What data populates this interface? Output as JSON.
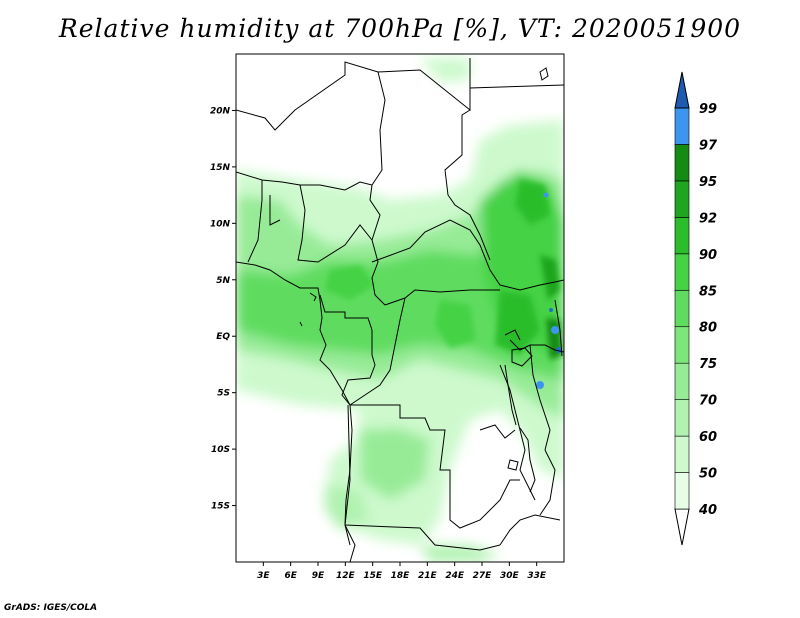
{
  "title": "Relative humidity at 700hPa [%], VT: 2020051900",
  "credit": "GrADS: IGES/COLA",
  "map": {
    "lon_range": [
      0,
      36
    ],
    "lat_range": [
      -20,
      25
    ],
    "lat_ticks": [
      {
        "value": 20,
        "label": "20N"
      },
      {
        "value": 15,
        "label": "15N"
      },
      {
        "value": 10,
        "label": "10N"
      },
      {
        "value": 5,
        "label": "5N"
      },
      {
        "value": 0,
        "label": "EQ"
      },
      {
        "value": -5,
        "label": "5S"
      },
      {
        "value": -10,
        "label": "10S"
      },
      {
        "value": -15,
        "label": "15S"
      }
    ],
    "lon_ticks": [
      {
        "value": 3,
        "label": "3E"
      },
      {
        "value": 6,
        "label": "6E"
      },
      {
        "value": 9,
        "label": "9E"
      },
      {
        "value": 12,
        "label": "12E"
      },
      {
        "value": 15,
        "label": "15E"
      },
      {
        "value": 18,
        "label": "18E"
      },
      {
        "value": 21,
        "label": "21E"
      },
      {
        "value": 24,
        "label": "24E"
      },
      {
        "value": 27,
        "label": "27E"
      },
      {
        "value": 30,
        "label": "30E"
      },
      {
        "value": 33,
        "label": "33E"
      }
    ]
  },
  "colorbar": {
    "levels": [
      {
        "label": "40",
        "color": "#e6fde6"
      },
      {
        "label": "50",
        "color": "#cdf9cd"
      },
      {
        "label": "60",
        "color": "#b1f2b1"
      },
      {
        "label": "70",
        "color": "#97eb97"
      },
      {
        "label": "75",
        "color": "#7ce57c"
      },
      {
        "label": "80",
        "color": "#5fdc5f"
      },
      {
        "label": "85",
        "color": "#45d245"
      },
      {
        "label": "90",
        "color": "#2bbd2b"
      },
      {
        "label": "92",
        "color": "#1fa51f"
      },
      {
        "label": "95",
        "color": "#148c14"
      },
      {
        "label": "97",
        "color": "#3c96f0"
      },
      {
        "label": "99",
        "color": "#1e6ed2"
      }
    ],
    "low_color": "#ffffff",
    "high_color": "#1e5aaf"
  }
}
